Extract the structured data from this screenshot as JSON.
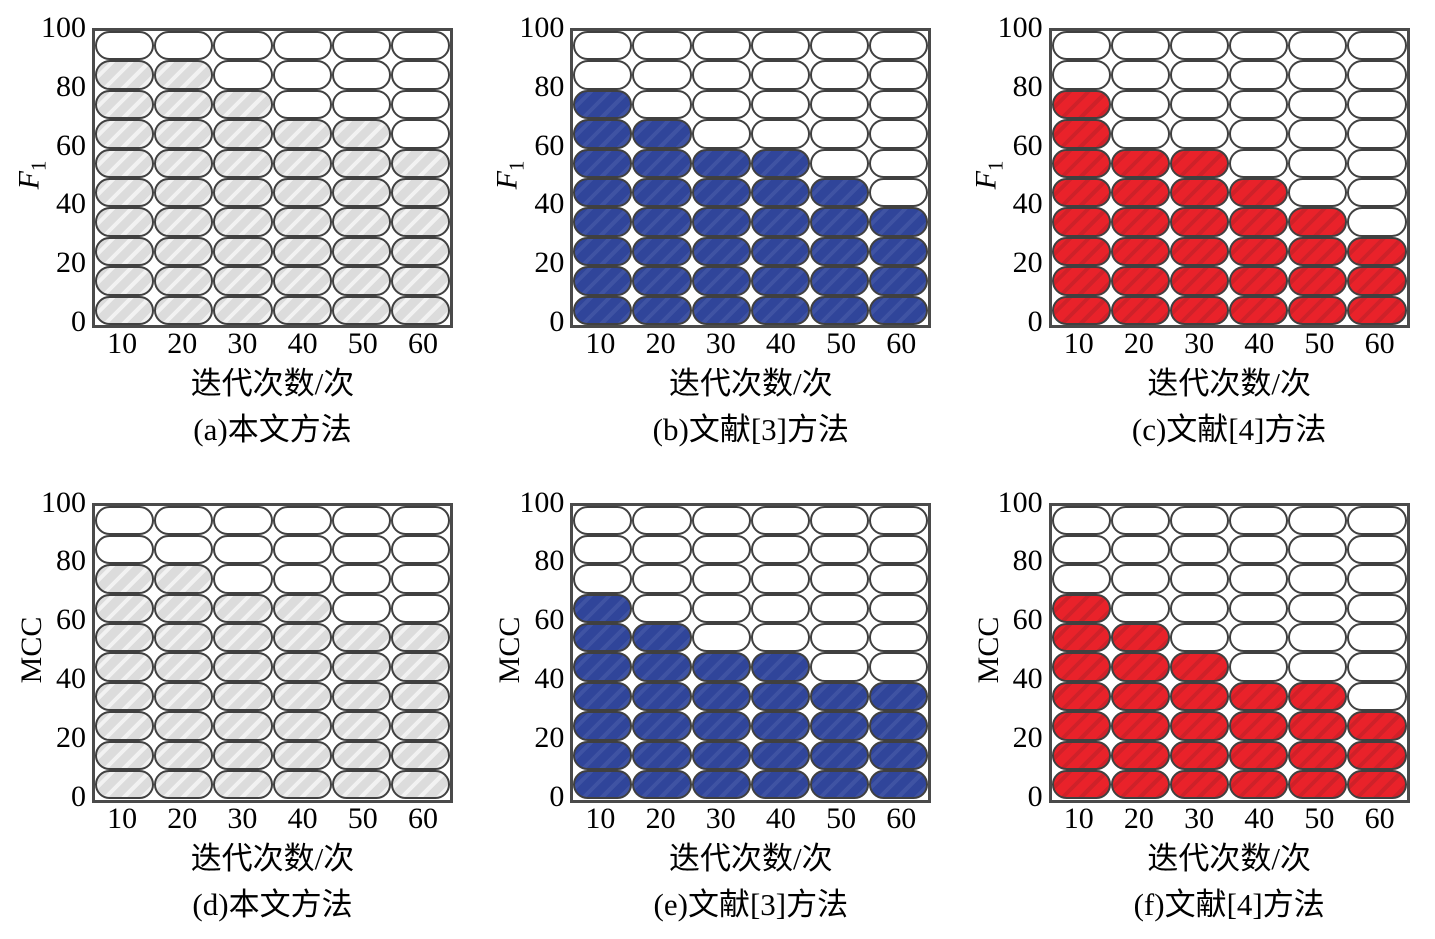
{
  "palette": {
    "gray_base": "#dcdcdc",
    "gray_stripe": "#f2f2f2",
    "blue_base": "#30459a",
    "blue_stripe": "#3f53a3",
    "red_base": "#e9222a",
    "red_stripe": "#cf2129",
    "cell_border": "#404040",
    "box_border": "#4a4a4a"
  },
  "chart_data": [
    {
      "panel": "a",
      "type": "bar",
      "style": "waffle-pills",
      "title": "(a)本文方法",
      "xlabel": "迭代次数/次",
      "ylabel": "F1",
      "categories": [
        10,
        20,
        30,
        40,
        50,
        60
      ],
      "values": [
        90,
        90,
        80,
        70,
        70,
        60
      ],
      "ylim": [
        0,
        100
      ],
      "yticks": [
        0,
        20,
        40,
        60,
        80,
        100
      ],
      "fill": "gray",
      "grid_rows": 10,
      "unit_per_cell": 10
    },
    {
      "panel": "b",
      "type": "bar",
      "style": "waffle-pills",
      "title": "(b)文献[3]方法",
      "xlabel": "迭代次数/次",
      "ylabel": "F1",
      "categories": [
        10,
        20,
        30,
        40,
        50,
        60
      ],
      "values": [
        80,
        70,
        60,
        60,
        50,
        40
      ],
      "ylim": [
        0,
        100
      ],
      "yticks": [
        0,
        20,
        40,
        60,
        80,
        100
      ],
      "fill": "blue",
      "grid_rows": 10,
      "unit_per_cell": 10
    },
    {
      "panel": "c",
      "type": "bar",
      "style": "waffle-pills",
      "title": "(c)文献[4]方法",
      "xlabel": "迭代次数/次",
      "ylabel": "F1",
      "categories": [
        10,
        20,
        30,
        40,
        50,
        60
      ],
      "values": [
        80,
        60,
        60,
        50,
        40,
        30
      ],
      "ylim": [
        0,
        100
      ],
      "yticks": [
        0,
        20,
        40,
        60,
        80,
        100
      ],
      "fill": "red",
      "grid_rows": 10,
      "unit_per_cell": 10
    },
    {
      "panel": "d",
      "type": "bar",
      "style": "waffle-pills",
      "title": "(d)本文方法",
      "xlabel": "迭代次数/次",
      "ylabel": "MCC",
      "categories": [
        10,
        20,
        30,
        40,
        50,
        60
      ],
      "values": [
        80,
        80,
        70,
        70,
        60,
        60
      ],
      "ylim": [
        0,
        100
      ],
      "yticks": [
        0,
        20,
        40,
        60,
        80,
        100
      ],
      "fill": "gray",
      "grid_rows": 10,
      "unit_per_cell": 10
    },
    {
      "panel": "e",
      "type": "bar",
      "style": "waffle-pills",
      "title": "(e)文献[3]方法",
      "xlabel": "迭代次数/次",
      "ylabel": "MCC",
      "categories": [
        10,
        20,
        30,
        40,
        50,
        60
      ],
      "values": [
        70,
        60,
        50,
        50,
        40,
        40
      ],
      "ylim": [
        0,
        100
      ],
      "yticks": [
        0,
        20,
        40,
        60,
        80,
        100
      ],
      "fill": "blue",
      "grid_rows": 10,
      "unit_per_cell": 10
    },
    {
      "panel": "f",
      "type": "bar",
      "style": "waffle-pills",
      "title": "(f)文献[4]方法",
      "xlabel": "迭代次数/次",
      "ylabel": "MCC",
      "categories": [
        10,
        20,
        30,
        40,
        50,
        60
      ],
      "values": [
        70,
        60,
        50,
        40,
        40,
        30
      ],
      "ylim": [
        0,
        100
      ],
      "yticks": [
        0,
        20,
        40,
        60,
        80,
        100
      ],
      "fill": "red",
      "grid_rows": 10,
      "unit_per_cell": 10
    }
  ]
}
